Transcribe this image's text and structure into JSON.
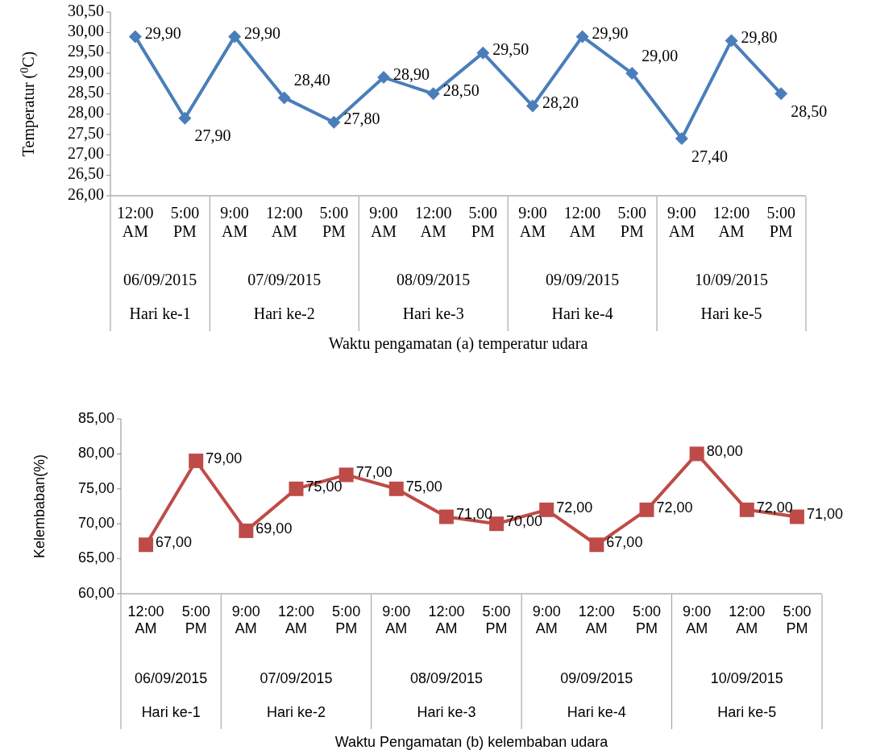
{
  "chart_data": [
    {
      "type": "line",
      "ylabel": "Temperatur ($^{0}$C)",
      "xlabel": "Waktu pengamatan  (a) temperatur udara",
      "categories": [
        "12:00 AM",
        "5:00 PM",
        "9:00 AM",
        "12:00 AM",
        "5:00 PM",
        "9:00 AM",
        "12:00 AM",
        "5:00 PM",
        "9:00 AM",
        "12:00 AM",
        "5:00 PM",
        "9:00 AM",
        "12:00 AM",
        "5:00 PM"
      ],
      "series": [
        {
          "color": "#4a7ebb",
          "values": [
            29.9,
            27.9,
            29.9,
            28.4,
            27.8,
            28.9,
            28.5,
            29.5,
            28.2,
            29.9,
            29.0,
            27.4,
            29.8,
            28.5
          ],
          "value_labels": [
            "29,90",
            "27,90",
            "29,90",
            "28,40",
            "27,80",
            "28,90",
            "28,50",
            "29,50",
            "28,20",
            "29,90",
            "29,00",
            "27,40",
            "29,80",
            "28,50"
          ]
        }
      ],
      "marker": "diamond",
      "ylim": [
        26,
        30.5
      ],
      "yticks": [
        {
          "value": 26,
          "label": "26,00"
        },
        {
          "value": 26.5,
          "label": "26,50"
        },
        {
          "value": 27,
          "label": "27,00"
        },
        {
          "value": 27.5,
          "label": "27,50"
        },
        {
          "value": 28,
          "label": "28,00"
        },
        {
          "value": 28.5,
          "label": "28,50"
        },
        {
          "value": 29,
          "label": "29,00"
        },
        {
          "value": 29.5,
          "label": "29,50"
        },
        {
          "value": 30,
          "label": "30,00"
        },
        {
          "value": 30.5,
          "label": "30,50"
        }
      ],
      "annotations": [
        "06/09/2015",
        "07/09/2015",
        "08/09/2015",
        "09/09/2015",
        "10/09/2015",
        "Hari ke-1",
        "Hari ke-2",
        "Hari ke-3",
        "Hari ke-4",
        "Hari ke-5"
      ]
    },
    {
      "type": "line",
      "ylabel": "Kelembaban(%)",
      "xlabel": "Waktu Pengamatan (b) kelembaban udara",
      "categories": [
        "12:00 AM",
        "5:00 PM",
        "9:00 AM",
        "12:00 AM",
        "5:00 PM",
        "9:00 AM",
        "12:00 AM",
        "5:00 PM",
        "9:00 AM",
        "12:00 AM",
        "5:00 PM",
        "9:00 AM",
        "12:00 AM",
        "5:00 PM"
      ],
      "series": [
        {
          "color": "#be4b48",
          "values": [
            67,
            79,
            69,
            75,
            77,
            75,
            71,
            70,
            72,
            67,
            72,
            80,
            72,
            71
          ],
          "value_labels": [
            "67,00",
            "79,00",
            "69,00",
            "75,00",
            "77,00",
            "75,00",
            "71,00",
            "70,00",
            "72,00",
            "67,00",
            "72,00",
            "80,00",
            "72,00",
            "71,00"
          ]
        }
      ],
      "marker": "square",
      "ylim": [
        60,
        85
      ],
      "yticks": [
        {
          "value": 60,
          "label": "60,00"
        },
        {
          "value": 65,
          "label": "65,00"
        },
        {
          "value": 70,
          "label": "70,00"
        },
        {
          "value": 75,
          "label": "75,00"
        },
        {
          "value": 80,
          "label": "80,00"
        },
        {
          "value": 85,
          "label": "85,00"
        }
      ],
      "annotations": [
        "06/09/2015",
        "07/09/2015",
        "08/09/2015",
        "09/09/2015",
        "10/09/2015",
        "Hari ke-1",
        "Hari ke-2",
        "Hari ke-3",
        "Hari ke-4",
        "Hari ke-5"
      ]
    }
  ]
}
